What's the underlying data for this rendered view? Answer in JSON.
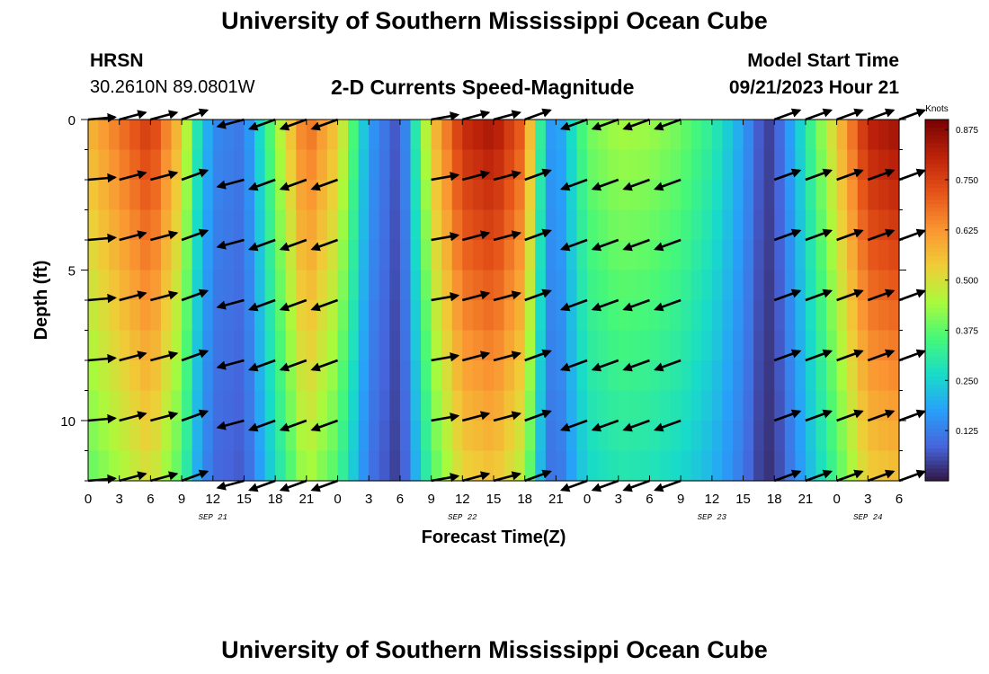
{
  "header": {
    "title": "University of Southern Mississippi Ocean Cube",
    "station": "HRSN",
    "coords": "30.2610N  89.0801W",
    "subtitle": "2-D Currents Speed-Magnitude",
    "model_start_label": "Model Start Time",
    "model_start_value": "09/21/2023 Hour 21"
  },
  "footer": {
    "title": "University of Southern Mississippi Ocean Cube"
  },
  "chart_data": {
    "type": "heatmap",
    "title": "2-D Currents Speed-Magnitude",
    "xlabel": "Forecast Time(Z)",
    "ylabel": "Depth (ft)",
    "x_start": "09/21/2023 00Z",
    "x_step_hours": 3,
    "x_tick_labels": [
      "0",
      "3",
      "6",
      "9",
      "12",
      "15",
      "18",
      "21",
      "0",
      "3",
      "6",
      "9",
      "12",
      "15",
      "18",
      "21",
      "0",
      "3",
      "6",
      "9",
      "12",
      "15",
      "18",
      "21",
      "0",
      "3",
      "6"
    ],
    "date_labels": [
      {
        "label": "SEP 21",
        "hour": 12
      },
      {
        "label": "SEP 22",
        "hour": 36
      },
      {
        "label": "SEP 23",
        "hour": 60
      },
      {
        "label": "SEP 24",
        "hour": 75
      }
    ],
    "x_range_hours": [
      0,
      78
    ],
    "y_ticks": [
      0,
      5,
      10
    ],
    "ylim": [
      0,
      12
    ],
    "colorbar": {
      "label": "Knots",
      "ticks": [
        "0.125",
        "0.250",
        "0.375",
        "0.500",
        "0.625",
        "0.750",
        "0.875"
      ],
      "range": [
        0.0,
        0.9
      ]
    },
    "speed_knots_by_hour": {
      "hours": [
        0,
        3,
        6,
        9,
        10.5,
        12,
        15,
        18,
        21,
        24,
        27,
        30,
        33,
        36,
        39,
        42,
        44,
        45,
        48,
        51,
        54,
        57,
        60,
        63,
        65,
        66,
        69,
        72,
        75,
        78
      ],
      "values": [
        0.58,
        0.68,
        0.78,
        0.55,
        0.3,
        0.15,
        0.12,
        0.42,
        0.7,
        0.55,
        0.18,
        0.06,
        0.55,
        0.8,
        0.85,
        0.7,
        0.2,
        0.15,
        0.4,
        0.45,
        0.44,
        0.4,
        0.32,
        0.18,
        0.05,
        0.06,
        0.3,
        0.55,
        0.82,
        0.86
      ]
    },
    "depth_attenuation": {
      "surface": 1.0,
      "bottom": 0.65
    },
    "vector_depths_ft": [
      0,
      2,
      4,
      6,
      8,
      10,
      12
    ],
    "vectors_direction_deg_by_hour": {
      "hours": [
        0,
        3,
        6,
        9,
        15,
        18,
        21,
        24,
        33,
        36,
        39,
        42,
        48,
        51,
        54,
        57,
        66,
        69,
        72,
        75,
        78
      ],
      "deg": [
        5,
        15,
        15,
        20,
        195,
        200,
        200,
        200,
        10,
        15,
        15,
        20,
        200,
        200,
        200,
        200,
        20,
        20,
        20,
        20,
        20
      ]
    }
  }
}
